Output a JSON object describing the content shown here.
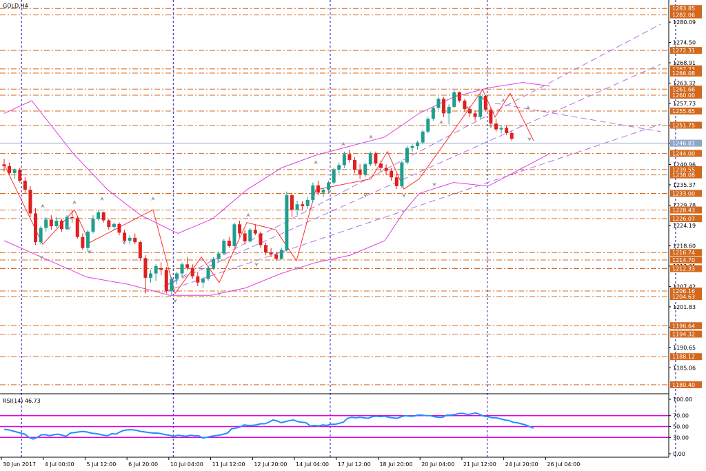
{
  "chart": {
    "symbol_label": "GOLD,H4",
    "rsi_label": "RSI(14) 46.73"
  },
  "colors": {
    "background": "#ffffff",
    "bull_candle": "#1f9e8f",
    "bear_candle": "#e01f1f",
    "bollinger": "#e040e0",
    "levels": "#d2691e",
    "price_tag": "#d2691e",
    "trendline": "#b070e0",
    "current_price_line": "#8ea6c8",
    "zigzag": "#ff3030",
    "rsi_line": "#1e90ff",
    "rsi_levels": "#e000e0",
    "session_separator": "#1010c0",
    "fractal": "#9a9a9a"
  },
  "chart_data": {
    "type": "candlestick",
    "title": "GOLD,H4",
    "ylim": [
      1178.3,
      1285.6
    ],
    "price_axis_ticks": [
      1280.09,
      1274.5,
      1268.91,
      1263.32,
      1257.73,
      1251.75,
      1246.81,
      1240.96,
      1235.37,
      1229.78,
      1224.19,
      1218.6,
      1213.01,
      1207.42,
      1201.83,
      1196.24,
      1190.65,
      1185.06
    ],
    "price_axis_tick_labels": [
      "1280.09",
      "1274.50",
      "1268.91",
      "1263.32",
      "1257.73",
      "1251.75",
      "1246.81",
      "1240.96",
      "1235.37",
      "1229.78",
      "1224.19",
      "1218.60",
      "1213.01",
      "1207.42",
      "1201.83",
      "1196.24",
      "1190.65",
      "1185.06"
    ],
    "levels": [
      1283.85,
      1282.06,
      1272.31,
      1267.23,
      1266.08,
      1261.66,
      1260.0,
      1255.65,
      1251.75,
      1244.0,
      1239.55,
      1238.08,
      1233.0,
      1228.43,
      1226.07,
      1216.74,
      1214.7,
      1212.33,
      1206.16,
      1204.63,
      1196.64,
      1194.32,
      1188.12,
      1180.4
    ],
    "level_labels": [
      "1283.85",
      "1282.06",
      "1272.31",
      "1267.23",
      "1266.08",
      "1261.66",
      "1260.00",
      "1255.65",
      "1251.75",
      "1244.00",
      "1239.55",
      "1238.08",
      "1233.00",
      "1228.43",
      "1226.07",
      "1216.74",
      "1214.70",
      "1212.33",
      "1206.16",
      "1204.63",
      "1196.64",
      "1194.32",
      "1188.12",
      "1180.40"
    ],
    "current_price": 1246.81,
    "x_tick_labels": [
      "30 Jun 2017",
      "4 Jul 00:00",
      "5 Jul 12:00",
      "6 Jul 20:00",
      "10 Jul 04:00",
      "11 Jul 12:00",
      "12 Jul 20:00",
      "14 Jul 04:00",
      "17 Jul 12:00",
      "18 Jul 20:00",
      "20 Jul 04:00",
      "21 Jul 12:00",
      "24 Jul 20:00",
      "26 Jul 04:00"
    ],
    "x_tick_index": [
      0,
      8,
      16,
      24,
      32,
      40,
      48,
      56,
      64,
      72,
      80,
      88,
      96,
      104
    ],
    "session_separator_index": [
      2,
      31,
      61,
      91,
      127
    ],
    "candles": [
      [
        1241.0,
        1242.5,
        1239.0,
        1240.5
      ],
      [
        1240.5,
        1241.5,
        1238.0,
        1238.6
      ],
      [
        1238.6,
        1240.0,
        1237.0,
        1239.5
      ],
      [
        1239.5,
        1240.0,
        1236.0,
        1236.5
      ],
      [
        1236.5,
        1237.5,
        1233.0,
        1234.0
      ],
      [
        1234.0,
        1235.0,
        1226.5,
        1227.5
      ],
      [
        1227.5,
        1229.0,
        1218.8,
        1219.6
      ],
      [
        1219.6,
        1224.0,
        1219.0,
        1223.5
      ],
      [
        1223.5,
        1226.5,
        1222.5,
        1225.8
      ],
      [
        1225.8,
        1227.0,
        1223.0,
        1224.0
      ],
      [
        1224.0,
        1226.5,
        1223.5,
        1225.5
      ],
      [
        1225.5,
        1226.0,
        1222.5,
        1223.2
      ],
      [
        1223.2,
        1227.0,
        1222.8,
        1226.5
      ],
      [
        1226.5,
        1228.5,
        1225.0,
        1226.2
      ],
      [
        1226.2,
        1226.8,
        1220.5,
        1221.0
      ],
      [
        1221.0,
        1222.0,
        1217.5,
        1218.0
      ],
      [
        1218.0,
        1223.0,
        1217.0,
        1222.5
      ],
      [
        1222.5,
        1227.0,
        1222.0,
        1226.0
      ],
      [
        1226.0,
        1228.5,
        1225.5,
        1227.8
      ],
      [
        1227.8,
        1228.0,
        1225.0,
        1225.6
      ],
      [
        1225.6,
        1226.0,
        1223.0,
        1223.8
      ],
      [
        1223.8,
        1225.0,
        1223.0,
        1224.6
      ],
      [
        1224.6,
        1225.0,
        1221.5,
        1222.2
      ],
      [
        1222.2,
        1223.0,
        1219.5,
        1220.0
      ],
      [
        1220.0,
        1221.5,
        1219.0,
        1220.8
      ],
      [
        1220.8,
        1222.0,
        1219.0,
        1219.6
      ],
      [
        1219.6,
        1220.0,
        1214.5,
        1215.2
      ],
      [
        1215.2,
        1216.0,
        1205.5,
        1209.8
      ],
      [
        1209.8,
        1212.0,
        1208.5,
        1211.0
      ],
      [
        1211.0,
        1213.5,
        1209.0,
        1213.0
      ],
      [
        1212.5,
        1214.0,
        1210.5,
        1212.0
      ],
      [
        1212.0,
        1212.8,
        1205.5,
        1206.2
      ],
      [
        1206.2,
        1210.0,
        1205.0,
        1209.5
      ],
      [
        1209.5,
        1211.5,
        1208.0,
        1211.0
      ],
      [
        1211.0,
        1214.0,
        1210.0,
        1213.5
      ],
      [
        1213.5,
        1215.5,
        1212.0,
        1212.5
      ],
      [
        1212.5,
        1213.5,
        1209.5,
        1210.2
      ],
      [
        1210.2,
        1211.5,
        1207.5,
        1208.5
      ],
      [
        1208.5,
        1210.0,
        1207.0,
        1209.5
      ],
      [
        1209.5,
        1213.0,
        1209.0,
        1212.5
      ],
      [
        1212.5,
        1215.5,
        1212.0,
        1215.0
      ],
      [
        1215.0,
        1217.0,
        1214.0,
        1216.5
      ],
      [
        1216.5,
        1220.5,
        1216.0,
        1220.0
      ],
      [
        1220.0,
        1221.0,
        1218.0,
        1218.5
      ],
      [
        1218.5,
        1225.0,
        1218.0,
        1224.5
      ],
      [
        1224.5,
        1225.5,
        1221.0,
        1222.0
      ],
      [
        1222.0,
        1223.0,
        1219.0,
        1219.8
      ],
      [
        1219.8,
        1223.5,
        1219.5,
        1223.0
      ],
      [
        1223.0,
        1224.5,
        1221.5,
        1222.0
      ],
      [
        1222.0,
        1222.5,
        1218.0,
        1218.8
      ],
      [
        1218.8,
        1219.5,
        1216.0,
        1216.8
      ],
      [
        1216.8,
        1218.0,
        1215.5,
        1216.2
      ],
      [
        1216.2,
        1217.0,
        1214.5,
        1215.0
      ],
      [
        1215.0,
        1218.0,
        1214.8,
        1217.5
      ],
      [
        1217.5,
        1233.5,
        1217.0,
        1232.5
      ],
      [
        1232.5,
        1233.0,
        1226.5,
        1228.5
      ],
      [
        1228.5,
        1231.0,
        1227.0,
        1230.0
      ],
      [
        1230.0,
        1230.8,
        1228.5,
        1229.5
      ],
      [
        1229.5,
        1232.0,
        1228.8,
        1231.2
      ],
      [
        1231.2,
        1236.0,
        1230.5,
        1235.2
      ],
      [
        1235.2,
        1236.5,
        1232.5,
        1233.2
      ],
      [
        1233.2,
        1234.5,
        1232.0,
        1234.0
      ],
      [
        1234.0,
        1236.5,
        1233.0,
        1236.0
      ],
      [
        1236.0,
        1240.0,
        1235.5,
        1239.5
      ],
      [
        1239.5,
        1241.5,
        1238.5,
        1240.8
      ],
      [
        1240.8,
        1244.5,
        1240.0,
        1243.8
      ],
      [
        1243.8,
        1245.0,
        1241.5,
        1242.2
      ],
      [
        1242.2,
        1243.0,
        1238.5,
        1239.5
      ],
      [
        1239.5,
        1241.0,
        1237.0,
        1238.2
      ],
      [
        1238.2,
        1241.5,
        1237.5,
        1241.0
      ],
      [
        1241.0,
        1244.5,
        1240.5,
        1244.0
      ],
      [
        1244.0,
        1244.5,
        1240.5,
        1241.2
      ],
      [
        1241.2,
        1242.0,
        1239.0,
        1240.0
      ],
      [
        1240.0,
        1241.0,
        1238.0,
        1239.2
      ],
      [
        1239.2,
        1240.0,
        1236.5,
        1237.4
      ],
      [
        1237.4,
        1238.5,
        1234.2,
        1235.0
      ],
      [
        1235.0,
        1242.0,
        1234.5,
        1241.5
      ],
      [
        1241.5,
        1246.0,
        1241.0,
        1245.5
      ],
      [
        1245.5,
        1246.5,
        1244.5,
        1246.0
      ],
      [
        1246.0,
        1247.5,
        1245.0,
        1247.0
      ],
      [
        1247.0,
        1250.5,
        1246.5,
        1250.0
      ],
      [
        1250.0,
        1254.0,
        1249.5,
        1253.5
      ],
      [
        1253.5,
        1257.0,
        1253.0,
        1256.5
      ],
      [
        1256.5,
        1259.5,
        1256.0,
        1259.0
      ],
      [
        1259.0,
        1259.5,
        1254.0,
        1255.0
      ],
      [
        1255.0,
        1257.5,
        1252.0,
        1256.8
      ],
      [
        1256.8,
        1261.5,
        1256.5,
        1260.8
      ],
      [
        1260.8,
        1261.0,
        1258.0,
        1258.5
      ],
      [
        1258.5,
        1259.0,
        1255.5,
        1256.2
      ],
      [
        1256.2,
        1257.0,
        1254.0,
        1255.0
      ],
      [
        1255.0,
        1255.8,
        1253.0,
        1254.0
      ],
      [
        1254.0,
        1260.5,
        1253.5,
        1259.8
      ],
      [
        1259.8,
        1260.0,
        1255.5,
        1256.0
      ],
      [
        1256.0,
        1256.5,
        1251.5,
        1252.2
      ],
      [
        1252.2,
        1253.5,
        1250.0,
        1250.6
      ],
      [
        1250.6,
        1251.5,
        1249.5,
        1251.0
      ],
      [
        1251.0,
        1251.8,
        1249.0,
        1249.6
      ],
      [
        1249.6,
        1250.2,
        1247.5,
        1248.0
      ]
    ],
    "bollinger_upper_sample": [
      [
        0,
        1255
      ],
      [
        20,
        1258.5
      ],
      [
        50,
        1244
      ],
      [
        75,
        1234
      ],
      [
        99,
        1227
      ],
      [
        126,
        1222
      ],
      [
        151,
        1226
      ],
      [
        176,
        1234
      ],
      [
        201,
        1240
      ],
      [
        226,
        1243.5
      ],
      [
        251,
        1246
      ],
      [
        276,
        1248.5
      ],
      [
        301,
        1255
      ],
      [
        326,
        1259.5
      ],
      [
        351,
        1262
      ],
      [
        376,
        1263.5
      ],
      [
        396,
        1262.5
      ]
    ],
    "bollinger_mid_sample": [
      [
        0,
        1240
      ],
      [
        30,
        1233
      ],
      [
        60,
        1226
      ],
      [
        90,
        1222
      ],
      [
        120,
        1216
      ],
      [
        150,
        1213
      ],
      [
        180,
        1215.5
      ],
      [
        210,
        1218
      ],
      [
        240,
        1222
      ],
      [
        270,
        1229
      ],
      [
        300,
        1237
      ],
      [
        330,
        1244
      ],
      [
        360,
        1251
      ],
      [
        380,
        1253
      ]
    ],
    "bollinger_lower_sample": [
      [
        0,
        1220
      ],
      [
        30,
        1215
      ],
      [
        60,
        1210
      ],
      [
        90,
        1208
      ],
      [
        120,
        1205
      ],
      [
        150,
        1205
      ],
      [
        175,
        1207
      ],
      [
        201,
        1211
      ],
      [
        226,
        1214
      ],
      [
        251,
        1216
      ],
      [
        276,
        1220
      ],
      [
        290,
        1228
      ],
      [
        301,
        1233
      ],
      [
        326,
        1236
      ],
      [
        351,
        1235
      ],
      [
        376,
        1240
      ],
      [
        396,
        1244
      ]
    ],
    "trendlines": [
      {
        "from": [
          116,
          1207.5
        ],
        "to": [
          476,
          1279.5
        ]
      },
      {
        "from": [
          116,
          1207.5
        ],
        "to": [
          476,
          1268.5
        ]
      },
      {
        "from": [
          116,
          1206.0
        ],
        "to": [
          476,
          1252.0
        ]
      },
      {
        "from": [
          356,
          1257.8
        ],
        "to": [
          476,
          1250.0
        ]
      }
    ],
    "zigzag": [
      [
        0,
        1241
      ],
      [
        28,
        1219
      ],
      [
        51,
        1228.5
      ],
      [
        62,
        1219.5
      ],
      [
        108,
        1228.5
      ],
      [
        124,
        1205.5
      ],
      [
        143,
        1215.5
      ],
      [
        156,
        1208.5
      ],
      [
        176,
        1225
      ],
      [
        197,
        1223
      ],
      [
        212,
        1214.5
      ],
      [
        226,
        1234
      ],
      [
        266,
        1237
      ],
      [
        278,
        1244.5
      ],
      [
        290,
        1234.2
      ],
      [
        301,
        1237
      ],
      [
        347,
        1261.5
      ],
      [
        356,
        1254
      ],
      [
        367,
        1260.5
      ],
      [
        384,
        1247.5
      ]
    ],
    "fractals_up": [
      [
        28,
        1229
      ],
      [
        51,
        1230
      ],
      [
        71,
        1231
      ],
      [
        108,
        1231
      ],
      [
        177,
        1226.5
      ],
      [
        226,
        1241
      ],
      [
        246,
        1246
      ],
      [
        266,
        1248
      ],
      [
        317,
        1252
      ],
      [
        336,
        1256
      ],
      [
        347,
        1258.5
      ],
      [
        362,
        1258
      ],
      [
        380,
        1256
      ]
    ],
    "fractals_down": [
      [
        27,
        1216
      ],
      [
        47,
        1224
      ],
      [
        62,
        1217.5
      ],
      [
        87,
        1220
      ],
      [
        124,
        1204
      ],
      [
        156,
        1206
      ],
      [
        183,
        1214
      ],
      [
        212,
        1213
      ],
      [
        236,
        1234
      ],
      [
        262,
        1233
      ],
      [
        290,
        1233
      ],
      [
        312,
        1236
      ],
      [
        353,
        1252
      ],
      [
        381,
        1248.5
      ]
    ],
    "rsi": {
      "title": "RSI(14) 46.73",
      "value": 46.73,
      "ylim": [
        0,
        100
      ],
      "ticks": [
        100,
        70,
        50,
        30,
        0
      ],
      "tick_labels": [
        "100.00",
        "70.00",
        "50.00",
        "30.00",
        "0.00"
      ],
      "levels": [
        70,
        50,
        30
      ],
      "values": [
        45,
        44,
        42,
        40,
        38,
        36,
        30,
        27,
        30,
        35,
        35,
        33,
        35,
        36,
        34,
        32,
        38,
        39,
        40,
        41,
        40,
        38,
        37,
        36,
        34,
        33,
        37,
        36,
        40,
        43,
        44,
        44,
        43,
        41,
        40,
        39,
        38,
        38,
        37,
        35,
        34,
        32,
        34,
        33,
        32,
        34,
        33,
        33,
        29,
        30,
        32,
        33,
        34,
        36,
        38,
        46,
        47,
        49,
        53,
        52,
        52,
        53,
        55,
        55,
        58,
        62,
        60,
        57,
        59,
        61,
        62,
        59,
        58,
        57,
        51,
        52,
        51,
        53,
        52,
        54,
        54,
        56,
        58,
        65,
        67,
        66,
        67,
        66,
        65,
        68,
        69,
        68,
        69,
        67,
        66,
        65,
        68,
        70,
        69,
        69,
        71,
        71,
        70,
        70,
        68,
        67,
        67,
        71,
        71,
        72,
        74,
        74,
        72,
        73,
        75,
        72,
        69,
        68,
        66,
        66,
        64,
        62,
        61,
        58,
        57,
        55,
        53,
        50,
        47
      ]
    }
  }
}
